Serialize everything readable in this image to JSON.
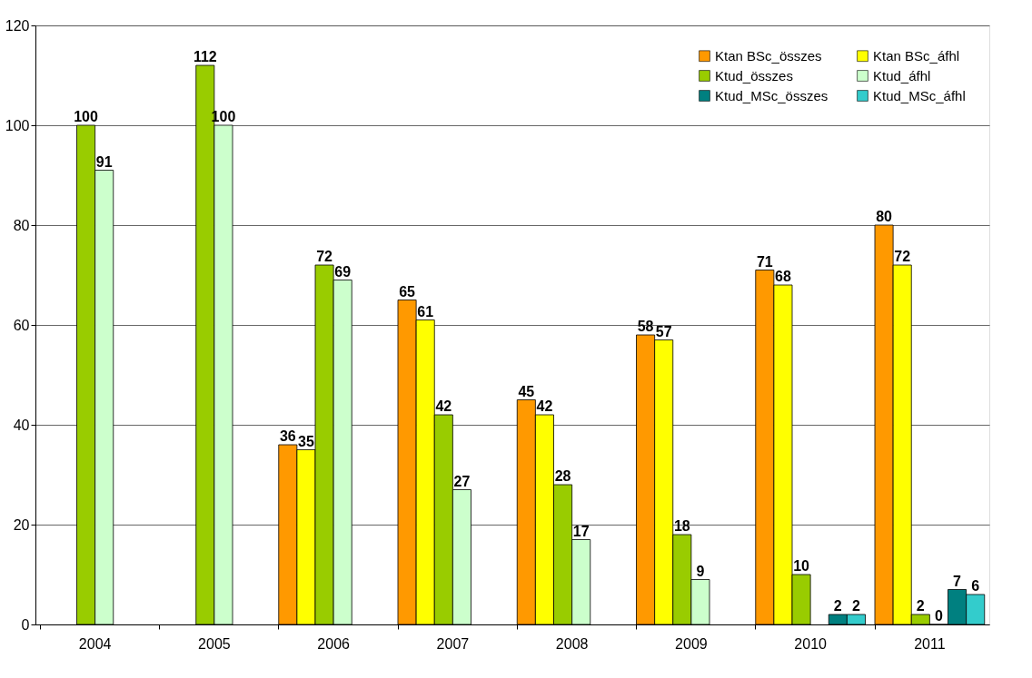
{
  "chart_data": {
    "type": "bar",
    "categories": [
      "2004",
      "2005",
      "2006",
      "2007",
      "2008",
      "2009",
      "2010",
      "2011"
    ],
    "series": [
      {
        "name": "Ktan BSc_összes",
        "color": "#ff9900",
        "values": [
          null,
          null,
          36,
          65,
          45,
          58,
          71,
          80
        ]
      },
      {
        "name": "Ktan BSc_áfhl",
        "color": "#ffff00",
        "values": [
          null,
          null,
          35,
          61,
          42,
          57,
          68,
          72
        ]
      },
      {
        "name": "Ktud_összes",
        "color": "#99cc00",
        "values": [
          100,
          112,
          72,
          42,
          28,
          18,
          10,
          2
        ]
      },
      {
        "name": "Ktud_áfhl",
        "color": "#ccffcc",
        "values": [
          91,
          100,
          69,
          27,
          17,
          9,
          null,
          0
        ]
      },
      {
        "name": "Ktud_MSc_összes",
        "color": "#008080",
        "values": [
          null,
          null,
          null,
          null,
          null,
          null,
          2,
          7
        ]
      },
      {
        "name": "Ktud_MSc_áfhl",
        "color": "#33cccc",
        "values": [
          null,
          null,
          null,
          null,
          null,
          null,
          2,
          6
        ]
      }
    ],
    "ylim": [
      0,
      120
    ],
    "yticks": [
      0,
      20,
      40,
      60,
      80,
      100,
      120
    ],
    "grid": "y",
    "legend": "top right",
    "data_labels": true
  }
}
